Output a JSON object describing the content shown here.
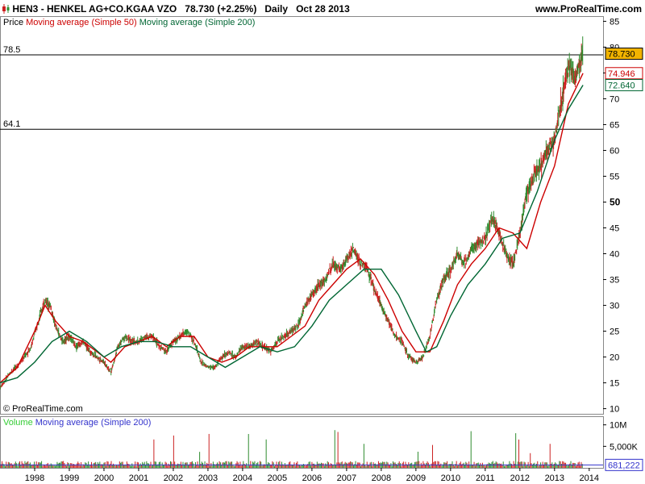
{
  "header": {
    "ticker": "HEN3 - HENKEL AG+CO.KGAA VZO",
    "price_change": "78.730 (+2.25%)",
    "period": "Daily",
    "date": "Oct 28 2013",
    "site": "www.ProRealTime.com",
    "logo_icon": "candlestick-icon"
  },
  "price_legend": {
    "price": "Price",
    "ma50": "Moving average (Simple 50)",
    "ma200": "Moving average (Simple 200)"
  },
  "volume_legend": {
    "volume": "Volume",
    "ma200": "Moving average (Simple 200)"
  },
  "copyright": "© ProRealTime.com",
  "colors": {
    "price_up": "#2e8b2e",
    "price_down": "#cc2222",
    "ma50": "#cc0000",
    "ma200": "#006633",
    "volume_legend": "#33cc33",
    "volume_ma": "#3333cc",
    "last_price_box": "#f2b400"
  },
  "chart_data": {
    "type": "line",
    "title": "HEN3 - HENKEL AG+CO.KGAA VZO",
    "x_ticks": [
      "1998",
      "1999",
      "2000",
      "2001",
      "2002",
      "2003",
      "2004",
      "2005",
      "2006",
      "2007",
      "2008",
      "2009",
      "2010",
      "2011",
      "2012",
      "2013",
      "2014"
    ],
    "xlim": [
      1997.0,
      2014.4
    ],
    "y_ticks": [
      "10",
      "15",
      "20",
      "25",
      "30",
      "35",
      "40",
      "45",
      "50",
      "55",
      "60",
      "65",
      "70",
      "75",
      "80",
      "85"
    ],
    "y_bold_tick": "50",
    "ylim": [
      9,
      86
    ],
    "horizontal_lines": [
      {
        "label": "78.5",
        "value": 78.5
      },
      {
        "label": "64.1",
        "value": 64.1
      }
    ],
    "value_labels": [
      {
        "series": "price",
        "text": "78.730",
        "value": 78.73
      },
      {
        "series": "ma50",
        "text": "74.946",
        "value": 74.946
      },
      {
        "series": "ma200",
        "text": "72.640",
        "value": 72.64
      }
    ],
    "series": [
      {
        "name": "Price",
        "x": [
          1997.0,
          1997.3,
          1997.6,
          1997.9,
          1998.1,
          1998.3,
          1998.45,
          1998.6,
          1998.8,
          1999.0,
          1999.2,
          1999.4,
          1999.6,
          1999.8,
          2000.0,
          2000.2,
          2000.4,
          2000.6,
          2000.8,
          2001.0,
          2001.2,
          2001.4,
          2001.6,
          2001.8,
          2002.0,
          2002.2,
          2002.4,
          2002.6,
          2002.8,
          2003.0,
          2003.2,
          2003.4,
          2003.6,
          2003.8,
          2004.0,
          2004.2,
          2004.4,
          2004.6,
          2004.8,
          2005.0,
          2005.2,
          2005.4,
          2005.6,
          2005.8,
          2006.0,
          2006.2,
          2006.4,
          2006.6,
          2006.8,
          2007.0,
          2007.2,
          2007.4,
          2007.6,
          2007.8,
          2008.0,
          2008.2,
          2008.4,
          2008.6,
          2008.8,
          2009.0,
          2009.2,
          2009.4,
          2009.6,
          2009.8,
          2010.0,
          2010.2,
          2010.4,
          2010.6,
          2010.8,
          2011.0,
          2011.2,
          2011.4,
          2011.6,
          2011.8,
          2012.0,
          2012.2,
          2012.4,
          2012.6,
          2012.8,
          2013.0,
          2013.2,
          2013.4,
          2013.6,
          2013.82
        ],
        "values": [
          14,
          17,
          19,
          22,
          27,
          31,
          30,
          26,
          23,
          24,
          22,
          23,
          21,
          20,
          19,
          17,
          22,
          24,
          23,
          23,
          24,
          24,
          22,
          21,
          23,
          24,
          25,
          23,
          19,
          18,
          18,
          20,
          21,
          20,
          22,
          22,
          23,
          22,
          21,
          23,
          24,
          25,
          26,
          30,
          32,
          34,
          35,
          38,
          37,
          39,
          41,
          38,
          37,
          33,
          30,
          27,
          24,
          23,
          20,
          19,
          20,
          24,
          31,
          35,
          37,
          40,
          38,
          41,
          42,
          43,
          47,
          44,
          40,
          38,
          44,
          52,
          55,
          57,
          60,
          62,
          70,
          76,
          74,
          78.73
        ]
      },
      {
        "name": "Moving average (Simple 50)",
        "x": [
          1997.0,
          1997.5,
          1998.0,
          1998.3,
          1998.6,
          1999.0,
          1999.4,
          1999.8,
          2000.2,
          2000.6,
          2001.0,
          2001.4,
          2001.8,
          2002.2,
          2002.6,
          2003.0,
          2003.4,
          2003.8,
          2004.2,
          2004.6,
          2005.0,
          2005.4,
          2005.8,
          2006.2,
          2006.6,
          2007.0,
          2007.4,
          2007.8,
          2008.2,
          2008.6,
          2009.0,
          2009.4,
          2009.8,
          2010.2,
          2010.6,
          2011.0,
          2011.4,
          2011.8,
          2012.2,
          2012.6,
          2013.0,
          2013.4,
          2013.82
        ],
        "values": [
          15,
          18,
          25,
          30,
          27,
          24,
          23,
          21,
          19,
          22,
          23,
          24,
          22,
          24,
          24,
          20,
          19,
          20,
          22,
          22,
          22,
          24,
          26,
          31,
          34,
          37,
          39,
          36,
          31,
          25,
          21,
          21,
          27,
          34,
          38,
          41,
          45,
          44,
          41,
          50,
          57,
          69,
          74.946
        ]
      },
      {
        "name": "Moving average (Simple 200)",
        "x": [
          1997.0,
          1997.5,
          1998.0,
          1998.5,
          1999.0,
          1999.5,
          2000.0,
          2000.5,
          2001.0,
          2001.5,
          2002.0,
          2002.5,
          2003.0,
          2003.5,
          2004.0,
          2004.5,
          2005.0,
          2005.5,
          2006.0,
          2006.5,
          2007.0,
          2007.5,
          2008.0,
          2008.5,
          2009.0,
          2009.3,
          2009.6,
          2010.0,
          2010.5,
          2011.0,
          2011.5,
          2012.0,
          2012.5,
          2013.0,
          2013.4,
          2013.82
        ],
        "values": [
          15,
          16,
          19,
          23,
          25,
          23,
          20,
          22,
          23,
          23,
          22,
          22,
          20,
          18,
          20,
          22,
          21,
          22,
          26,
          31,
          34,
          37,
          37,
          32,
          25,
          21,
          22,
          28,
          34,
          38,
          43,
          44,
          52,
          62,
          68,
          72.64
        ]
      }
    ],
    "volume": {
      "y_ticks": [
        "10M",
        "5,000K"
      ],
      "ylim": [
        0,
        12
      ],
      "unit": "M",
      "ma_label": "681,222",
      "ma_value": 0.681222
    }
  }
}
